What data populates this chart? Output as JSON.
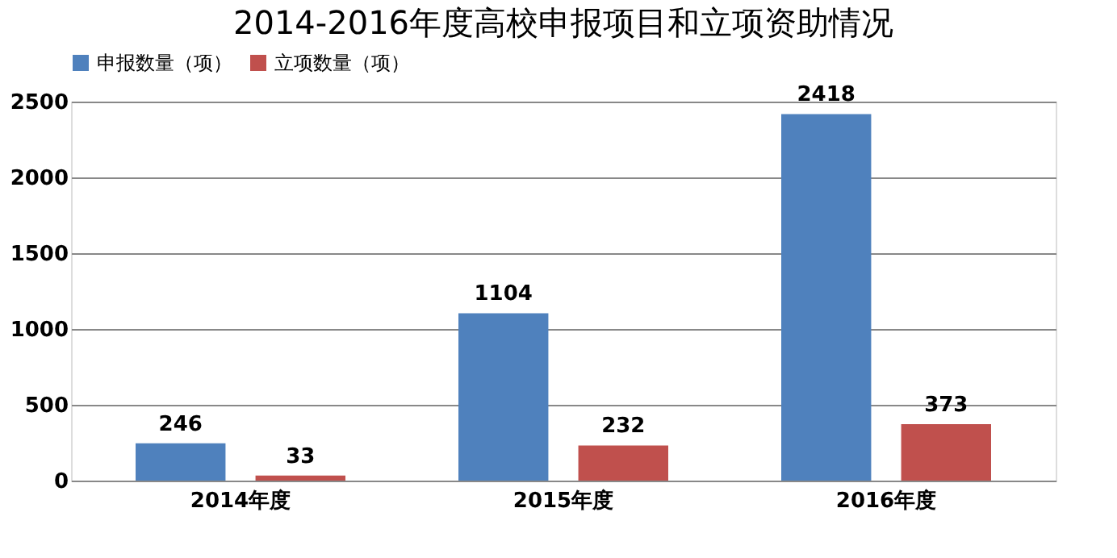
{
  "chart_data": {
    "type": "bar",
    "title": "2014-2016年度高校申报项目和立项资助情况",
    "categories": [
      "2014年度",
      "2015年度",
      "2016年度"
    ],
    "series": [
      {
        "name": "申报数量（项）",
        "color": "#4f81bd",
        "values": [
          246,
          1104,
          2418
        ]
      },
      {
        "name": "立项数量（项）",
        "color": "#c0504d",
        "values": [
          33,
          232,
          373
        ]
      }
    ],
    "ylim": [
      0,
      2500
    ],
    "yticks": [
      0,
      500,
      1000,
      1500,
      2000,
      2500
    ],
    "grid": "y",
    "legend": "top",
    "data_labels": true
  }
}
